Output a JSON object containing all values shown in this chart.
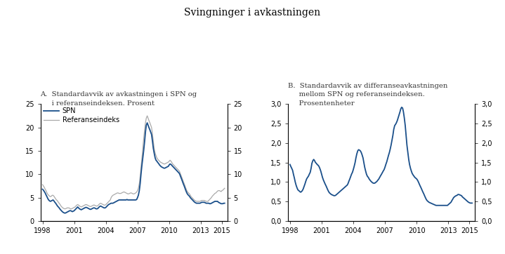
{
  "title": "Svingninger i avkastningen",
  "panel_a_title_line1": "A.  Standardavvik av avkastningen i SPN og",
  "panel_a_title_line2": "     i referanseindeksen. Prosent",
  "panel_b_title_line1": "B.  Standardavvik av differanseavkastningen",
  "panel_b_title_line2": "     mellom SPN og referanseindeksen.",
  "panel_b_title_line3": "     Prosentenheter",
  "legend_spn": "SPN",
  "legend_ref": "Referanseindeks",
  "color_spn": "#1a4f8a",
  "color_ref": "#aaaaaa",
  "color_spn_b": "#1a4f8a",
  "background_color": "#ffffff",
  "xlim_start": 1997.8,
  "xlim_end": 2015.5,
  "panel_a_ylim": [
    0,
    25
  ],
  "panel_a_yticks": [
    0,
    5,
    10,
    15,
    20,
    25
  ],
  "panel_b_ylim": [
    0.0,
    3.0
  ],
  "panel_b_yticks": [
    0.0,
    0.5,
    1.0,
    1.5,
    2.0,
    2.5,
    3.0
  ],
  "xticks": [
    1998,
    2001,
    2004,
    2007,
    2010,
    2013,
    2015
  ],
  "xtick_labels": [
    "1998",
    "2001",
    "2004",
    "2007",
    "2010",
    "2013",
    "2015"
  ],
  "spn_x": [
    1998.0,
    1998.08,
    1998.17,
    1998.25,
    1998.33,
    1998.42,
    1998.5,
    1998.58,
    1998.67,
    1998.75,
    1998.83,
    1998.92,
    1999.0,
    1999.08,
    1999.17,
    1999.25,
    1999.33,
    1999.42,
    1999.5,
    1999.58,
    1999.67,
    1999.75,
    1999.83,
    1999.92,
    2000.0,
    2000.08,
    2000.17,
    2000.25,
    2000.33,
    2000.42,
    2000.5,
    2000.58,
    2000.67,
    2000.75,
    2000.83,
    2000.92,
    2001.0,
    2001.08,
    2001.17,
    2001.25,
    2001.33,
    2001.42,
    2001.5,
    2001.58,
    2001.67,
    2001.75,
    2001.83,
    2001.92,
    2002.0,
    2002.08,
    2002.17,
    2002.25,
    2002.33,
    2002.42,
    2002.5,
    2002.58,
    2002.67,
    2002.75,
    2002.83,
    2002.92,
    2003.0,
    2003.08,
    2003.17,
    2003.25,
    2003.33,
    2003.42,
    2003.5,
    2003.58,
    2003.67,
    2003.75,
    2003.83,
    2003.92,
    2004.0,
    2004.08,
    2004.17,
    2004.25,
    2004.33,
    2004.42,
    2004.5,
    2004.58,
    2004.67,
    2004.75,
    2004.83,
    2004.92,
    2005.0,
    2005.08,
    2005.17,
    2005.25,
    2005.33,
    2005.42,
    2005.5,
    2005.58,
    2005.67,
    2005.75,
    2005.83,
    2005.92,
    2006.0,
    2006.08,
    2006.17,
    2006.25,
    2006.33,
    2006.42,
    2006.5,
    2006.58,
    2006.67,
    2006.75,
    2006.83,
    2006.92,
    2007.0,
    2007.08,
    2007.17,
    2007.25,
    2007.33,
    2007.42,
    2007.5,
    2007.58,
    2007.67,
    2007.75,
    2007.83,
    2007.92,
    2008.0,
    2008.08,
    2008.17,
    2008.25,
    2008.33,
    2008.42,
    2008.5,
    2008.58,
    2008.67,
    2008.75,
    2008.83,
    2008.92,
    2009.0,
    2009.08,
    2009.17,
    2009.25,
    2009.33,
    2009.42,
    2009.5,
    2009.58,
    2009.67,
    2009.75,
    2009.83,
    2009.92,
    2010.0,
    2010.08,
    2010.17,
    2010.25,
    2010.33,
    2010.42,
    2010.5,
    2010.58,
    2010.67,
    2010.75,
    2010.83,
    2010.92,
    2011.0,
    2011.08,
    2011.17,
    2011.25,
    2011.33,
    2011.42,
    2011.5,
    2011.58,
    2011.67,
    2011.75,
    2011.83,
    2011.92,
    2012.0,
    2012.08,
    2012.17,
    2012.25,
    2012.33,
    2012.42,
    2012.5,
    2012.58,
    2012.67,
    2012.75,
    2012.83,
    2012.92,
    2013.0,
    2013.08,
    2013.17,
    2013.25,
    2013.33,
    2013.42,
    2013.5,
    2013.58,
    2013.67,
    2013.75,
    2013.83,
    2013.92,
    2014.0,
    2014.08,
    2014.17,
    2014.25,
    2014.33,
    2014.42,
    2014.5,
    2014.58,
    2014.67,
    2014.75,
    2014.83,
    2014.92,
    2015.0,
    2015.08,
    2015.17,
    2015.25
  ],
  "spn_y": [
    6.8,
    6.6,
    6.3,
    6.0,
    5.6,
    5.2,
    4.8,
    4.5,
    4.3,
    4.2,
    4.3,
    4.4,
    4.5,
    4.3,
    4.0,
    3.8,
    3.5,
    3.2,
    3.0,
    2.8,
    2.5,
    2.3,
    2.1,
    1.9,
    1.8,
    1.7,
    1.7,
    1.8,
    1.9,
    2.0,
    2.1,
    2.2,
    2.2,
    2.1,
    2.0,
    2.1,
    2.2,
    2.4,
    2.6,
    2.8,
    3.0,
    2.8,
    2.6,
    2.5,
    2.4,
    2.5,
    2.6,
    2.7,
    2.8,
    2.9,
    2.9,
    2.8,
    2.7,
    2.6,
    2.5,
    2.5,
    2.6,
    2.7,
    2.8,
    2.8,
    2.7,
    2.6,
    2.6,
    2.7,
    2.9,
    3.1,
    3.2,
    3.1,
    3.0,
    2.9,
    2.8,
    2.8,
    2.9,
    3.1,
    3.3,
    3.5,
    3.6,
    3.7,
    3.8,
    3.8,
    3.8,
    3.9,
    4.0,
    4.1,
    4.2,
    4.3,
    4.4,
    4.5,
    4.5,
    4.5,
    4.5,
    4.5,
    4.5,
    4.5,
    4.5,
    4.5,
    4.6,
    4.5,
    4.5,
    4.5,
    4.5,
    4.5,
    4.5,
    4.5,
    4.5,
    4.5,
    4.5,
    4.6,
    5.0,
    5.5,
    6.5,
    8.0,
    10.0,
    12.0,
    13.5,
    15.0,
    17.0,
    19.0,
    20.5,
    21.0,
    20.5,
    20.0,
    19.5,
    19.0,
    18.5,
    17.0,
    15.5,
    14.5,
    13.5,
    13.0,
    12.8,
    12.5,
    12.3,
    12.0,
    11.8,
    11.6,
    11.5,
    11.4,
    11.3,
    11.3,
    11.4,
    11.5,
    11.6,
    11.7,
    12.0,
    12.2,
    12.1,
    11.9,
    11.7,
    11.5,
    11.3,
    11.1,
    10.9,
    10.7,
    10.5,
    10.3,
    10.0,
    9.5,
    9.0,
    8.5,
    8.0,
    7.5,
    7.0,
    6.5,
    6.0,
    5.7,
    5.5,
    5.3,
    5.0,
    4.8,
    4.6,
    4.4,
    4.2,
    4.0,
    3.9,
    3.8,
    3.8,
    3.8,
    3.8,
    3.8,
    3.9,
    4.0,
    4.0,
    4.0,
    4.0,
    3.9,
    3.8,
    3.8,
    3.8,
    3.8,
    3.7,
    3.7,
    3.8,
    3.9,
    4.0,
    4.1,
    4.2,
    4.2,
    4.2,
    4.2,
    4.0,
    3.9,
    3.8,
    3.7,
    3.7,
    3.7,
    3.8,
    3.8
  ],
  "ref_x": [
    1998.0,
    1998.08,
    1998.17,
    1998.25,
    1998.33,
    1998.42,
    1998.5,
    1998.58,
    1998.67,
    1998.75,
    1998.83,
    1998.92,
    1999.0,
    1999.08,
    1999.17,
    1999.25,
    1999.33,
    1999.42,
    1999.5,
    1999.58,
    1999.67,
    1999.75,
    1999.83,
    1999.92,
    2000.0,
    2000.08,
    2000.17,
    2000.25,
    2000.33,
    2000.42,
    2000.5,
    2000.58,
    2000.67,
    2000.75,
    2000.83,
    2000.92,
    2001.0,
    2001.08,
    2001.17,
    2001.25,
    2001.33,
    2001.42,
    2001.5,
    2001.58,
    2001.67,
    2001.75,
    2001.83,
    2001.92,
    2002.0,
    2002.08,
    2002.17,
    2002.25,
    2002.33,
    2002.42,
    2002.5,
    2002.58,
    2002.67,
    2002.75,
    2002.83,
    2002.92,
    2003.0,
    2003.08,
    2003.17,
    2003.25,
    2003.33,
    2003.42,
    2003.5,
    2003.58,
    2003.67,
    2003.75,
    2003.83,
    2003.92,
    2004.0,
    2004.08,
    2004.17,
    2004.25,
    2004.33,
    2004.42,
    2004.5,
    2004.58,
    2004.67,
    2004.75,
    2004.83,
    2004.92,
    2005.0,
    2005.08,
    2005.17,
    2005.25,
    2005.33,
    2005.42,
    2005.5,
    2005.58,
    2005.67,
    2005.75,
    2005.83,
    2005.92,
    2006.0,
    2006.08,
    2006.17,
    2006.25,
    2006.33,
    2006.42,
    2006.5,
    2006.58,
    2006.67,
    2006.75,
    2006.83,
    2006.92,
    2007.0,
    2007.08,
    2007.17,
    2007.25,
    2007.33,
    2007.42,
    2007.5,
    2007.58,
    2007.67,
    2007.75,
    2007.83,
    2007.92,
    2008.0,
    2008.08,
    2008.17,
    2008.25,
    2008.33,
    2008.42,
    2008.5,
    2008.58,
    2008.67,
    2008.75,
    2008.83,
    2008.92,
    2009.0,
    2009.08,
    2009.17,
    2009.25,
    2009.33,
    2009.42,
    2009.5,
    2009.58,
    2009.67,
    2009.75,
    2009.83,
    2009.92,
    2010.0,
    2010.08,
    2010.17,
    2010.25,
    2010.33,
    2010.42,
    2010.5,
    2010.58,
    2010.67,
    2010.75,
    2010.83,
    2010.92,
    2011.0,
    2011.08,
    2011.17,
    2011.25,
    2011.33,
    2011.42,
    2011.5,
    2011.58,
    2011.67,
    2011.75,
    2011.83,
    2011.92,
    2012.0,
    2012.08,
    2012.17,
    2012.25,
    2012.33,
    2012.42,
    2012.5,
    2012.58,
    2012.67,
    2012.75,
    2012.83,
    2012.92,
    2013.0,
    2013.08,
    2013.17,
    2013.25,
    2013.33,
    2013.42,
    2013.5,
    2013.58,
    2013.67,
    2013.75,
    2013.83,
    2013.92,
    2014.0,
    2014.08,
    2014.17,
    2014.25,
    2014.33,
    2014.42,
    2014.5,
    2014.58,
    2014.67,
    2014.75,
    2014.83,
    2014.92,
    2015.0,
    2015.08,
    2015.17,
    2015.25
  ],
  "ref_y": [
    7.8,
    7.5,
    7.2,
    6.8,
    6.5,
    6.0,
    5.7,
    5.5,
    5.3,
    5.2,
    5.3,
    5.5,
    5.5,
    5.3,
    5.0,
    4.7,
    4.5,
    4.3,
    4.0,
    3.8,
    3.5,
    3.2,
    3.0,
    2.8,
    2.7,
    2.6,
    2.6,
    2.7,
    2.8,
    2.8,
    2.8,
    2.7,
    2.6,
    2.6,
    2.7,
    2.8,
    2.9,
    3.0,
    3.2,
    3.4,
    3.5,
    3.4,
    3.2,
    3.1,
    3.0,
    3.1,
    3.2,
    3.3,
    3.4,
    3.5,
    3.5,
    3.4,
    3.3,
    3.2,
    3.1,
    3.1,
    3.2,
    3.3,
    3.4,
    3.4,
    3.3,
    3.2,
    3.2,
    3.3,
    3.5,
    3.7,
    3.8,
    3.7,
    3.6,
    3.5,
    3.4,
    3.4,
    3.5,
    3.7,
    3.9,
    4.1,
    4.3,
    4.5,
    5.0,
    5.3,
    5.5,
    5.6,
    5.7,
    5.8,
    5.9,
    6.0,
    6.0,
    5.9,
    5.9,
    5.9,
    6.0,
    6.1,
    6.2,
    6.2,
    6.1,
    6.0,
    5.9,
    5.8,
    5.8,
    5.9,
    6.0,
    6.0,
    5.9,
    5.8,
    5.8,
    5.9,
    6.0,
    6.2,
    6.5,
    7.0,
    8.0,
    9.5,
    11.5,
    13.5,
    15.5,
    17.5,
    19.5,
    21.0,
    22.0,
    22.5,
    22.0,
    21.5,
    21.0,
    20.5,
    20.0,
    18.5,
    17.0,
    15.5,
    14.5,
    14.0,
    13.5,
    13.2,
    13.0,
    12.8,
    12.6,
    12.5,
    12.4,
    12.3,
    12.2,
    12.2,
    12.3,
    12.4,
    12.5,
    12.6,
    12.8,
    13.0,
    12.8,
    12.5,
    12.2,
    12.0,
    11.8,
    11.6,
    11.4,
    11.2,
    11.0,
    10.8,
    10.5,
    10.0,
    9.5,
    9.0,
    8.5,
    8.0,
    7.5,
    7.0,
    6.5,
    6.2,
    6.0,
    5.8,
    5.5,
    5.2,
    5.0,
    4.8,
    4.6,
    4.4,
    4.3,
    4.2,
    4.2,
    4.2,
    4.2,
    4.2,
    4.3,
    4.4,
    4.4,
    4.4,
    4.4,
    4.3,
    4.2,
    4.2,
    4.2,
    4.4,
    4.6,
    4.8,
    5.0,
    5.3,
    5.5,
    5.7,
    5.9,
    6.0,
    6.2,
    6.4,
    6.5,
    6.5,
    6.4,
    6.3,
    6.5,
    6.6,
    6.8,
    7.0
  ],
  "diff_x": [
    1998.0,
    1998.08,
    1998.17,
    1998.25,
    1998.33,
    1998.42,
    1998.5,
    1998.58,
    1998.67,
    1998.75,
    1998.83,
    1998.92,
    1999.0,
    1999.08,
    1999.17,
    1999.25,
    1999.33,
    1999.42,
    1999.5,
    1999.58,
    1999.67,
    1999.75,
    1999.83,
    1999.92,
    2000.0,
    2000.08,
    2000.17,
    2000.25,
    2000.33,
    2000.42,
    2000.5,
    2000.58,
    2000.67,
    2000.75,
    2000.83,
    2000.92,
    2001.0,
    2001.08,
    2001.17,
    2001.25,
    2001.33,
    2001.42,
    2001.5,
    2001.58,
    2001.67,
    2001.75,
    2001.83,
    2001.92,
    2002.0,
    2002.08,
    2002.17,
    2002.25,
    2002.33,
    2002.42,
    2002.5,
    2002.58,
    2002.67,
    2002.75,
    2002.83,
    2002.92,
    2003.0,
    2003.08,
    2003.17,
    2003.25,
    2003.33,
    2003.42,
    2003.5,
    2003.58,
    2003.67,
    2003.75,
    2003.83,
    2003.92,
    2004.0,
    2004.08,
    2004.17,
    2004.25,
    2004.33,
    2004.42,
    2004.5,
    2004.58,
    2004.67,
    2004.75,
    2004.83,
    2004.92,
    2005.0,
    2005.08,
    2005.17,
    2005.25,
    2005.33,
    2005.42,
    2005.5,
    2005.58,
    2005.67,
    2005.75,
    2005.83,
    2005.92,
    2006.0,
    2006.08,
    2006.17,
    2006.25,
    2006.33,
    2006.42,
    2006.5,
    2006.58,
    2006.67,
    2006.75,
    2006.83,
    2006.92,
    2007.0,
    2007.08,
    2007.17,
    2007.25,
    2007.33,
    2007.42,
    2007.5,
    2007.58,
    2007.67,
    2007.75,
    2007.83,
    2007.92,
    2008.0,
    2008.08,
    2008.17,
    2008.25,
    2008.33,
    2008.42,
    2008.5,
    2008.58,
    2008.67,
    2008.75,
    2008.83,
    2008.92,
    2009.0,
    2009.08,
    2009.17,
    2009.25,
    2009.33,
    2009.42,
    2009.5,
    2009.58,
    2009.67,
    2009.75,
    2009.83,
    2009.92,
    2010.0,
    2010.08,
    2010.17,
    2010.25,
    2010.33,
    2010.42,
    2010.5,
    2010.58,
    2010.67,
    2010.75,
    2010.83,
    2010.92,
    2011.0,
    2011.08,
    2011.17,
    2011.25,
    2011.33,
    2011.42,
    2011.5,
    2011.58,
    2011.67,
    2011.75,
    2011.83,
    2011.92,
    2012.0,
    2012.08,
    2012.17,
    2012.25,
    2012.33,
    2012.42,
    2012.5,
    2012.58,
    2012.67,
    2012.75,
    2012.83,
    2012.92,
    2013.0,
    2013.08,
    2013.17,
    2013.25,
    2013.33,
    2013.42,
    2013.5,
    2013.58,
    2013.67,
    2013.75,
    2013.83,
    2013.92,
    2014.0,
    2014.08,
    2014.17,
    2014.25,
    2014.33,
    2014.42,
    2014.5,
    2014.58,
    2014.67,
    2014.75,
    2014.83,
    2014.92,
    2015.0,
    2015.08,
    2015.17,
    2015.25
  ],
  "diff_y": [
    1.45,
    1.4,
    1.35,
    1.3,
    1.2,
    1.1,
    1.0,
    0.92,
    0.85,
    0.8,
    0.78,
    0.76,
    0.74,
    0.75,
    0.78,
    0.82,
    0.88,
    0.95,
    1.02,
    1.08,
    1.12,
    1.15,
    1.2,
    1.25,
    1.35,
    1.48,
    1.55,
    1.58,
    1.55,
    1.5,
    1.48,
    1.45,
    1.43,
    1.4,
    1.35,
    1.28,
    1.2,
    1.12,
    1.05,
    1.0,
    0.95,
    0.9,
    0.85,
    0.8,
    0.75,
    0.72,
    0.7,
    0.68,
    0.67,
    0.66,
    0.65,
    0.65,
    0.66,
    0.68,
    0.7,
    0.72,
    0.74,
    0.76,
    0.78,
    0.8,
    0.82,
    0.84,
    0.86,
    0.88,
    0.9,
    0.92,
    0.96,
    1.02,
    1.08,
    1.14,
    1.2,
    1.25,
    1.32,
    1.4,
    1.5,
    1.62,
    1.72,
    1.8,
    1.83,
    1.82,
    1.8,
    1.76,
    1.7,
    1.62,
    1.5,
    1.38,
    1.28,
    1.2,
    1.15,
    1.12,
    1.08,
    1.05,
    1.02,
    1.0,
    0.98,
    0.97,
    0.97,
    0.98,
    1.0,
    1.02,
    1.05,
    1.08,
    1.12,
    1.16,
    1.2,
    1.24,
    1.28,
    1.32,
    1.38,
    1.45,
    1.52,
    1.6,
    1.68,
    1.76,
    1.85,
    1.95,
    2.08,
    2.2,
    2.35,
    2.45,
    2.48,
    2.52,
    2.58,
    2.65,
    2.72,
    2.8,
    2.88,
    2.92,
    2.9,
    2.8,
    2.65,
    2.45,
    2.2,
    1.95,
    1.75,
    1.58,
    1.45,
    1.35,
    1.28,
    1.22,
    1.18,
    1.15,
    1.12,
    1.1,
    1.08,
    1.05,
    1.0,
    0.95,
    0.9,
    0.85,
    0.8,
    0.75,
    0.7,
    0.65,
    0.6,
    0.55,
    0.52,
    0.5,
    0.48,
    0.47,
    0.46,
    0.45,
    0.44,
    0.43,
    0.42,
    0.41,
    0.4,
    0.4,
    0.4,
    0.4,
    0.4,
    0.4,
    0.4,
    0.4,
    0.4,
    0.4,
    0.4,
    0.4,
    0.4,
    0.4,
    0.42,
    0.44,
    0.46,
    0.48,
    0.52,
    0.56,
    0.6,
    0.62,
    0.64,
    0.65,
    0.66,
    0.68,
    0.68,
    0.67,
    0.66,
    0.65,
    0.62,
    0.6,
    0.58,
    0.56,
    0.54,
    0.52,
    0.5,
    0.48,
    0.47,
    0.46,
    0.46,
    0.46
  ]
}
